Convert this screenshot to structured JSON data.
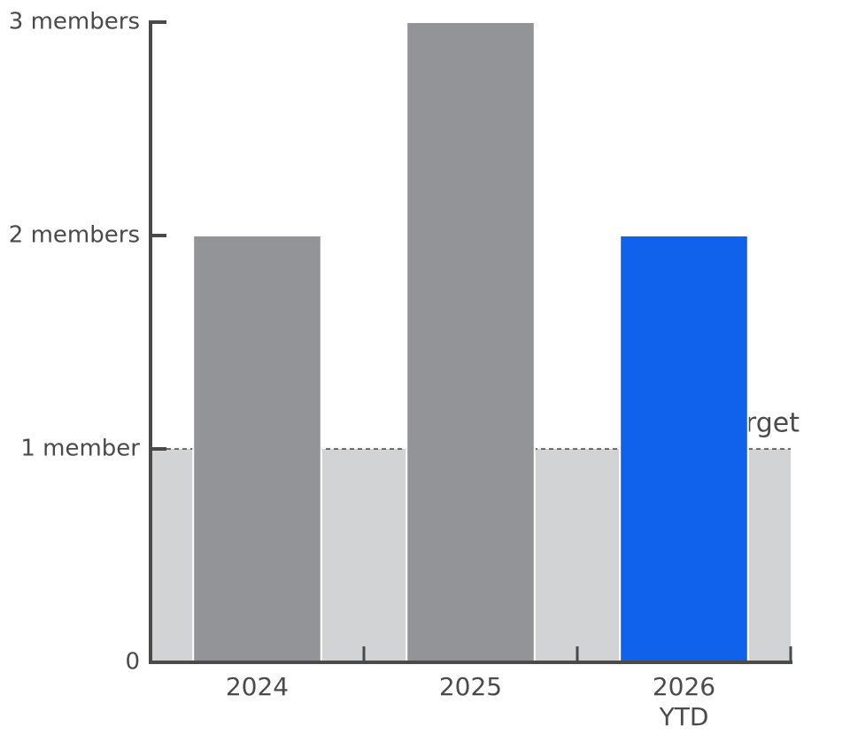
{
  "chart_data": {
    "type": "bar",
    "categories": [
      "2024",
      "2025",
      "2026 YTD"
    ],
    "values": [
      2,
      3,
      2
    ],
    "colors": [
      "#939497",
      "#939497",
      "#1062ec"
    ],
    "ylim": [
      0,
      3
    ],
    "yticks": [
      0,
      {
        "value": 1,
        "label": "1 member"
      },
      {
        "value": 2,
        "label": "2 members"
      },
      {
        "value": 3,
        "label": "3 members"
      }
    ],
    "target": {
      "value": 1,
      "label": "Target",
      "color": "#d2d3d5"
    }
  }
}
